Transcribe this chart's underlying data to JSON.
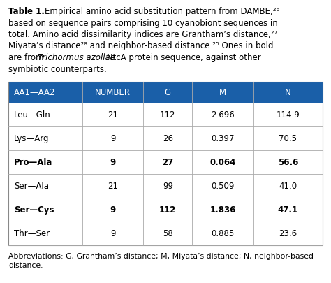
{
  "title_bold": "Table 1.",
  "header": [
    "AA1—AA2",
    "NUMBER",
    "G",
    "M",
    "N"
  ],
  "rows": [
    [
      "Leu—Gln",
      "21",
      "112",
      "2.696",
      "114.9",
      false
    ],
    [
      "Lys—Arg",
      "9",
      "26",
      "0.397",
      "70.5",
      false
    ],
    [
      "Pro—Ala",
      "9",
      "27",
      "0.064",
      "56.6",
      true
    ],
    [
      "Ser—Ala",
      "21",
      "99",
      "0.509",
      "41.0",
      false
    ],
    [
      "Ser—Cys",
      "9",
      "112",
      "1.836",
      "47.1",
      true
    ],
    [
      "Thr—Ser",
      "9",
      "58",
      "0.885",
      "23.6",
      false
    ]
  ],
  "header_bg": "#1a5fa8",
  "header_fg": "#ffffff",
  "row_bg_white": "#ffffff",
  "abbrev_line1": "Abbreviations: G, Grantham’s distance; M, Miyata’s distance; N, neighbor-based",
  "abbrev_line2": "distance.",
  "border_color": "#aaaaaa",
  "fig_bg": "#ffffff",
  "caption_fs": 8.5,
  "header_fs": 8.5,
  "cell_fs": 8.5,
  "abbrev_fs": 7.8
}
